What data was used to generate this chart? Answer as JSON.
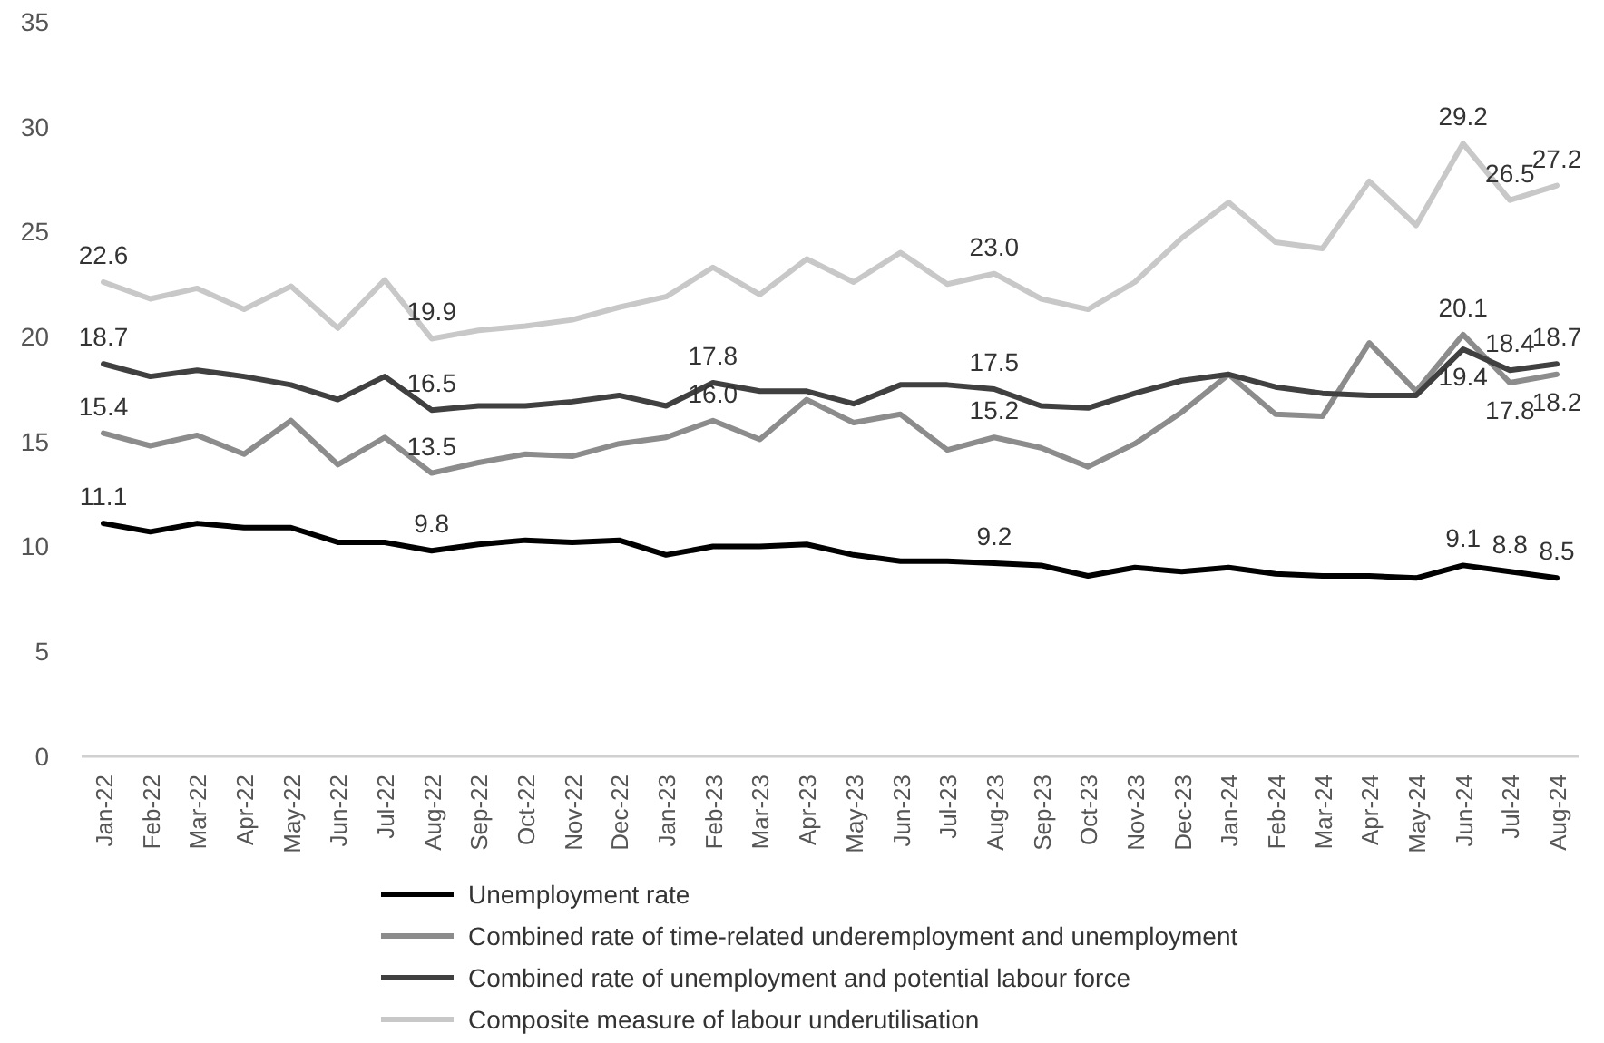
{
  "chart_data": {
    "type": "line",
    "categories": [
      "Jan-22",
      "Feb-22",
      "Mar-22",
      "Apr-22",
      "May-22",
      "Jun-22",
      "Jul-22",
      "Aug-22",
      "Sep-22",
      "Oct-22",
      "Nov-22",
      "Dec-22",
      "Jan-23",
      "Feb-23",
      "Mar-23",
      "Apr-23",
      "May-23",
      "Jun-23",
      "Jul-23",
      "Aug-23",
      "Sep-23",
      "Oct-23",
      "Nov-23",
      "Dec-23",
      "Jan-24",
      "Feb-24",
      "Mar-24",
      "Apr-24",
      "May-24",
      "Jun-24",
      "Jul-24",
      "Aug-24"
    ],
    "series": [
      {
        "name": "Unemployment rate",
        "color": "#000000",
        "values": [
          11.1,
          10.7,
          11.1,
          10.9,
          10.9,
          10.2,
          10.2,
          9.8,
          10.1,
          10.3,
          10.2,
          10.3,
          9.6,
          10.0,
          10.0,
          10.1,
          9.6,
          9.3,
          9.3,
          9.2,
          9.1,
          8.6,
          9.0,
          8.8,
          9.0,
          8.7,
          8.6,
          8.6,
          8.5,
          9.1,
          8.8,
          8.5
        ],
        "value_labels": [
          "11.1",
          null,
          null,
          null,
          null,
          null,
          null,
          "9.8",
          null,
          null,
          null,
          null,
          null,
          null,
          null,
          null,
          null,
          null,
          null,
          "9.2",
          null,
          null,
          null,
          null,
          null,
          null,
          null,
          null,
          null,
          "9.1",
          "8.8",
          "8.5"
        ]
      },
      {
        "name": "Combined rate of time-related underemployment and unemployment",
        "color": "#8c8c8c",
        "values": [
          15.4,
          14.8,
          15.3,
          14.4,
          16.0,
          13.9,
          15.2,
          13.5,
          14.0,
          14.4,
          14.3,
          14.9,
          15.2,
          16.0,
          15.1,
          17.0,
          15.9,
          16.3,
          14.6,
          15.2,
          14.7,
          13.8,
          14.9,
          16.4,
          18.2,
          16.3,
          16.2,
          19.7,
          17.4,
          20.1,
          17.8,
          18.2
        ],
        "value_labels": [
          "15.4",
          null,
          null,
          null,
          null,
          null,
          null,
          "13.5",
          null,
          null,
          null,
          null,
          null,
          "16.0",
          null,
          null,
          null,
          null,
          null,
          "15.2",
          null,
          null,
          null,
          null,
          null,
          null,
          null,
          null,
          null,
          "20.1",
          "17.8",
          "18.2"
        ]
      },
      {
        "name": "Combined rate of unemployment and potential labour force",
        "color": "#404040",
        "values": [
          18.7,
          18.1,
          18.4,
          18.1,
          17.7,
          17.0,
          18.1,
          16.5,
          16.7,
          16.7,
          16.9,
          17.2,
          16.7,
          17.8,
          17.4,
          17.4,
          16.8,
          17.7,
          17.7,
          17.5,
          16.7,
          16.6,
          17.3,
          17.9,
          18.2,
          17.6,
          17.3,
          17.2,
          17.2,
          19.4,
          18.4,
          18.7
        ],
        "value_labels": [
          "18.7",
          null,
          null,
          null,
          null,
          null,
          null,
          "16.5",
          null,
          null,
          null,
          null,
          null,
          "17.8",
          null,
          null,
          null,
          null,
          null,
          "17.5",
          null,
          null,
          null,
          null,
          null,
          null,
          null,
          null,
          null,
          "19.4",
          "18.4",
          "18.7"
        ]
      },
      {
        "name": "Composite measure of labour underutilisation",
        "color": "#c8c8c8",
        "values": [
          22.6,
          21.8,
          22.3,
          21.3,
          22.4,
          20.4,
          22.7,
          19.9,
          20.3,
          20.5,
          20.8,
          21.4,
          21.9,
          23.3,
          22.0,
          23.7,
          22.6,
          24.0,
          22.5,
          23.0,
          21.8,
          21.3,
          22.6,
          24.7,
          26.4,
          24.5,
          24.2,
          27.4,
          25.3,
          29.2,
          26.5,
          27.2
        ],
        "value_labels": [
          "22.6",
          null,
          null,
          null,
          null,
          null,
          null,
          "19.9",
          null,
          null,
          null,
          null,
          null,
          null,
          null,
          null,
          null,
          null,
          null,
          "23.0",
          null,
          null,
          null,
          null,
          null,
          null,
          null,
          null,
          null,
          "29.2",
          "26.5",
          "27.2"
        ]
      }
    ],
    "ylim": [
      0,
      35
    ],
    "yticks": [
      0,
      5,
      10,
      15,
      20,
      25,
      30,
      35
    ],
    "grid": false,
    "legend": "bottom",
    "marker": "none",
    "line_style": "solid"
  }
}
